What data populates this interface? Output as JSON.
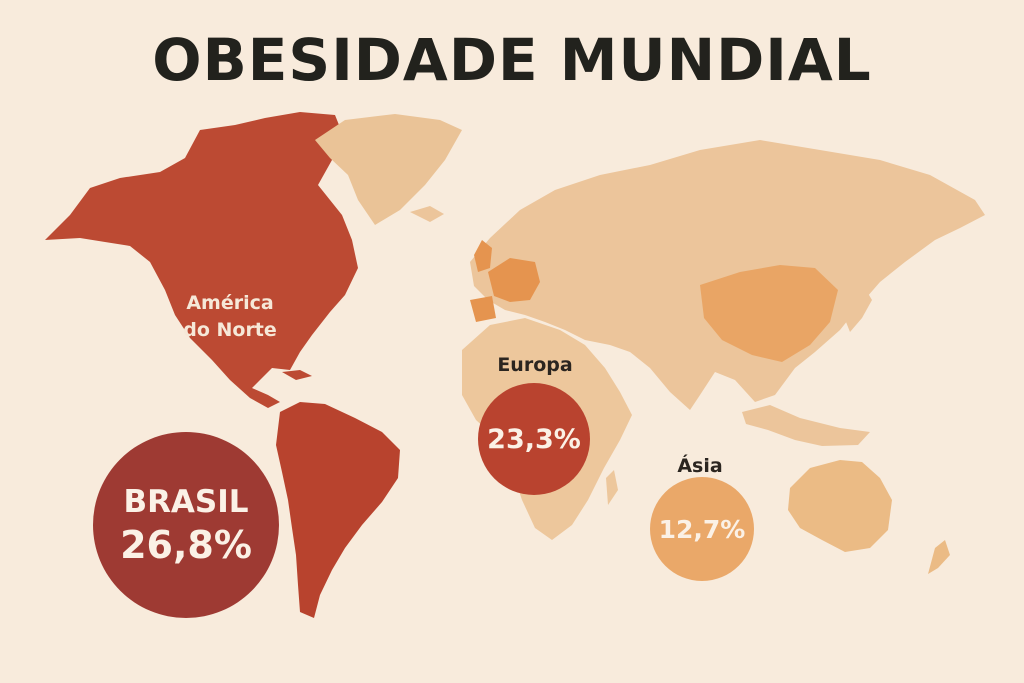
{
  "title": "OBESIDADE MUNDIAL",
  "colors": {
    "background": "#f8ebdc",
    "north_america": "#bc4a33",
    "south_america": "#b8432e",
    "greenland": "#eac397",
    "europe_highlight": "#e5944f",
    "china_highlight": "#e9a565",
    "eurasia": "#ecc59b",
    "africa": "#edc79c",
    "oceania": "#ebbb85",
    "brasil_bubble": "#9e3a33",
    "europa_bubble": "#b9432f",
    "asia_bubble": "#eaa869"
  },
  "regions": {
    "north_america": {
      "label": "América do Norte",
      "label_line1": "América",
      "label_line2": "do Norte"
    },
    "brasil": {
      "label": "BRASIL",
      "value": "26,8%"
    },
    "europa": {
      "label": "Europa",
      "value": "23,3%"
    },
    "asia": {
      "label": "Ásia",
      "value": "12,7%"
    }
  }
}
